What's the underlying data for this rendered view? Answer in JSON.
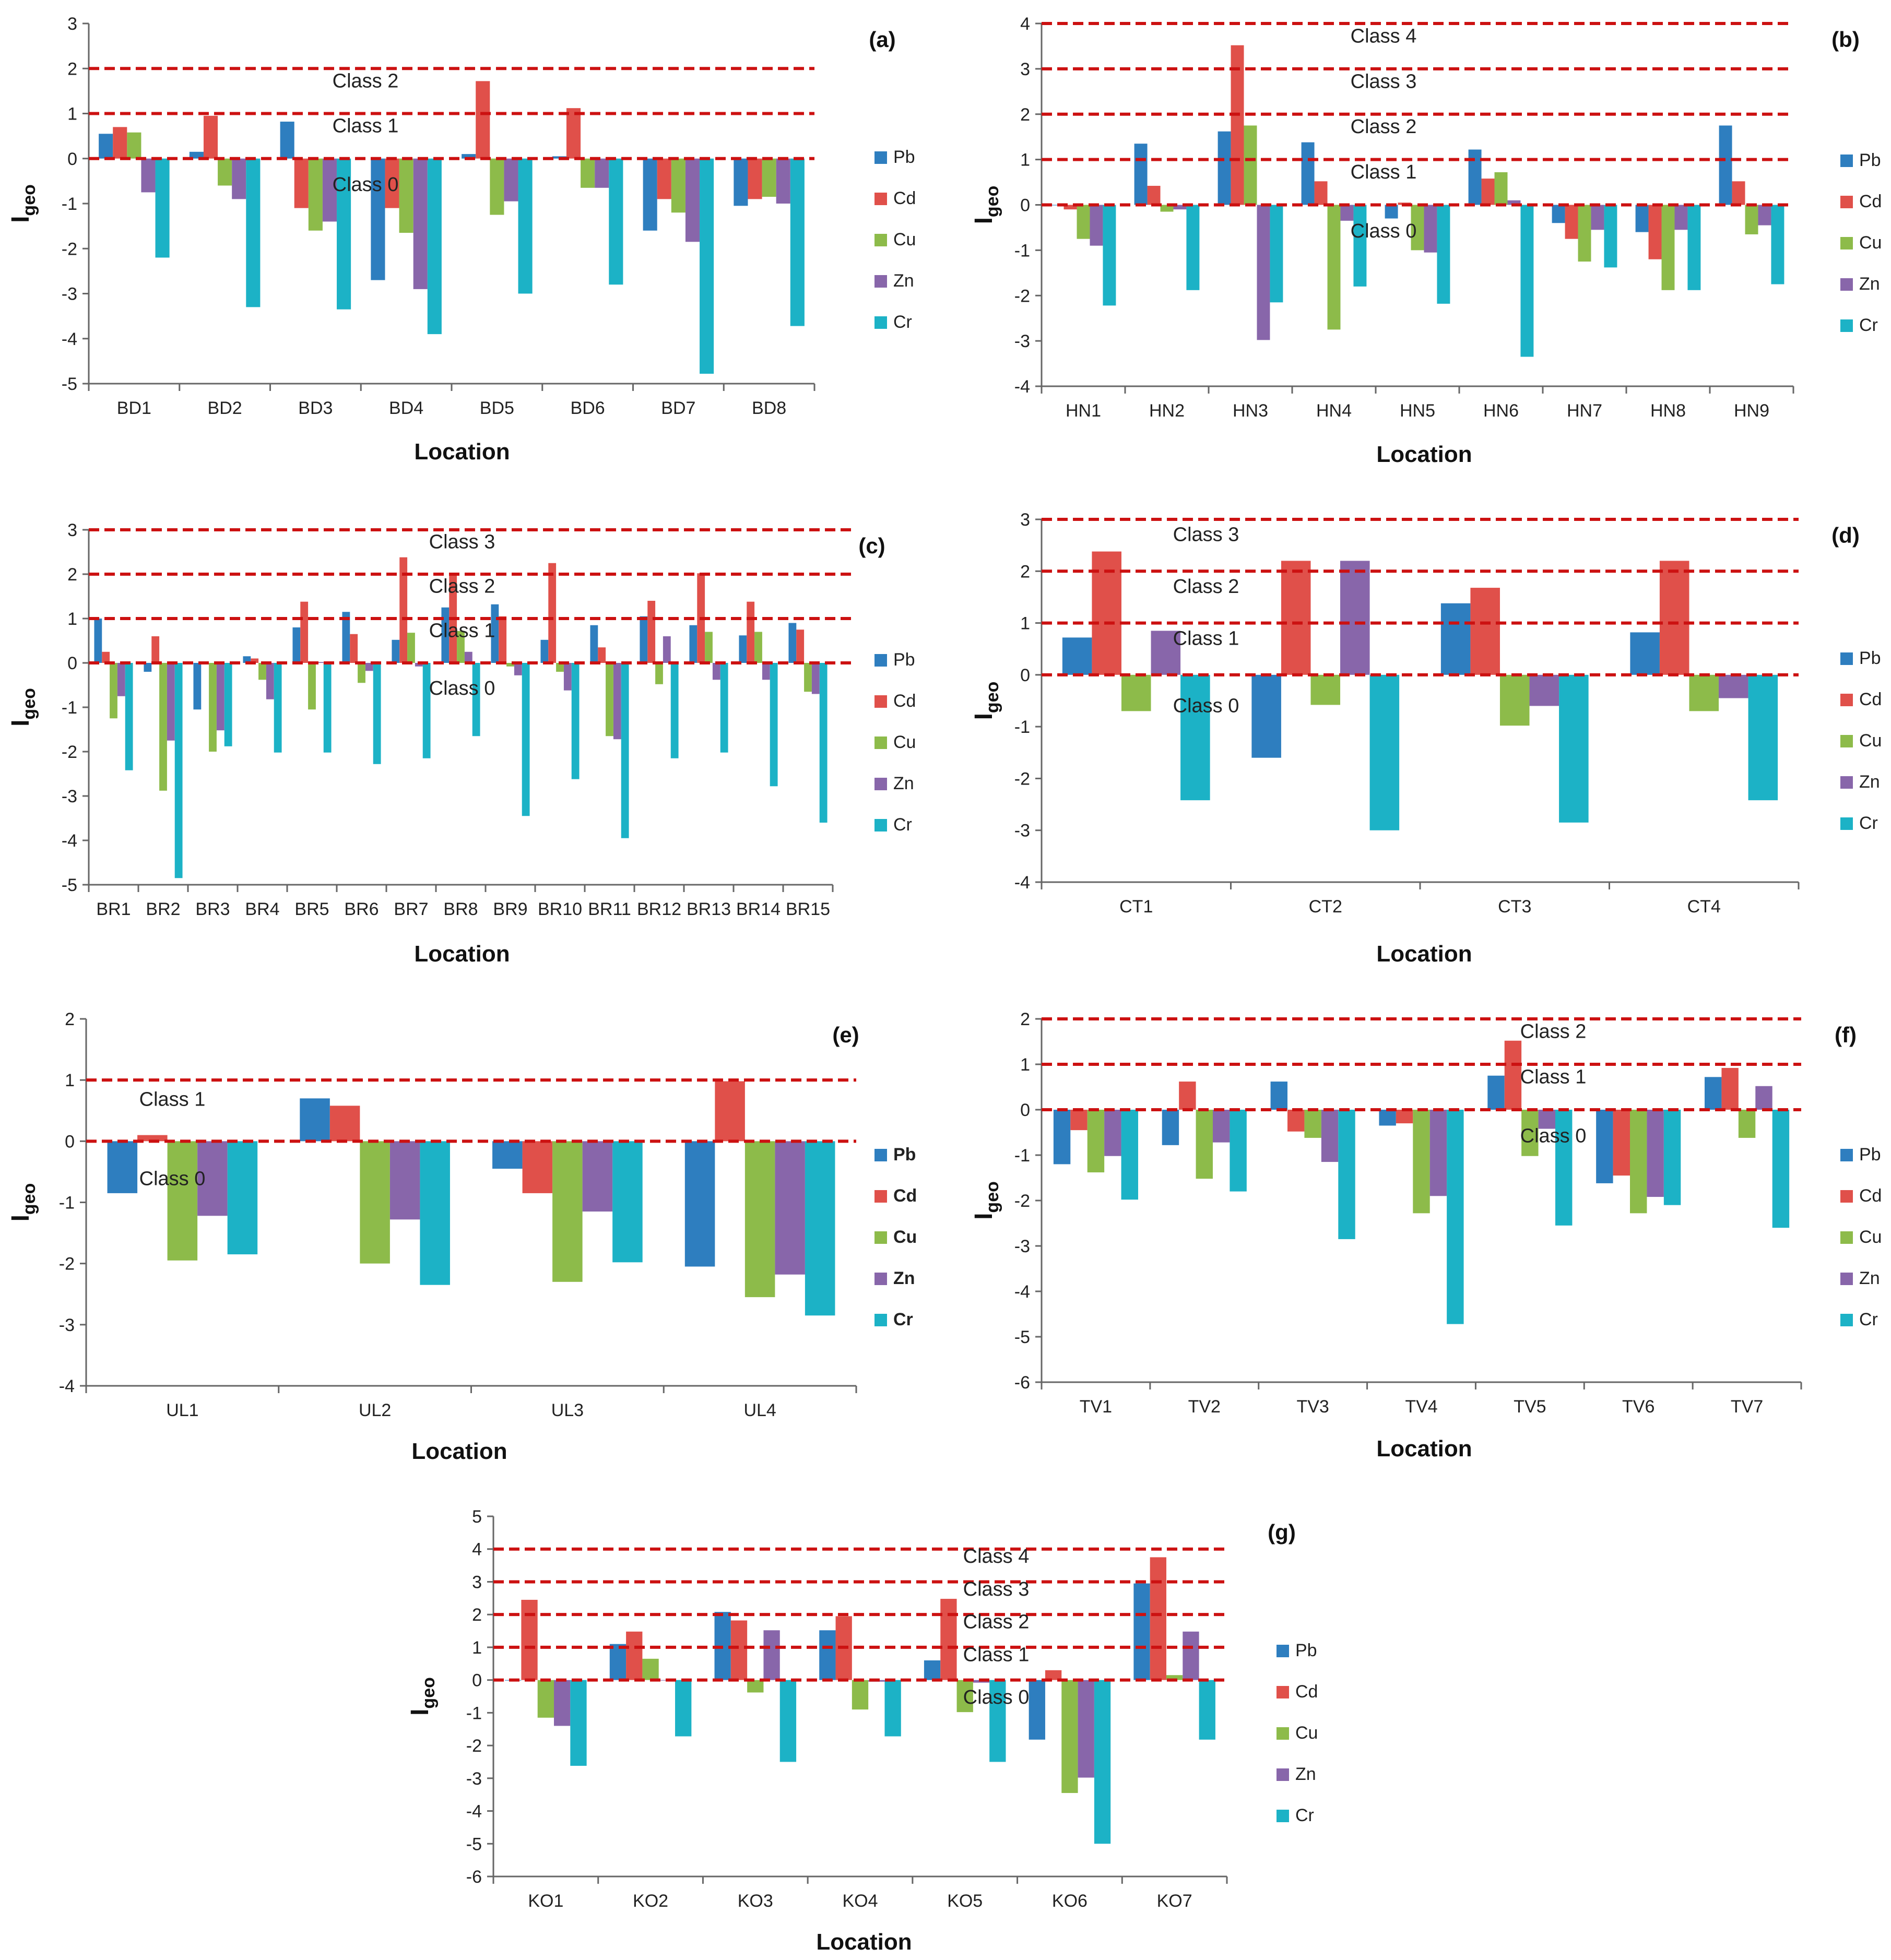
{
  "figure": {
    "ylabel": "I",
    "ylabel_sub": "geo"
  },
  "colors": {
    "Pb": "#2E7EBF",
    "Cd": "#E0504A",
    "Cu": "#8DBB4A",
    "Zn": "#8866AA",
    "Cr": "#1CB2C6",
    "threshold": "#CC1111"
  },
  "chart_data": [
    {
      "type": "bar",
      "label": "(a)",
      "xlabel": "Location",
      "ylim": [
        -5,
        3
      ],
      "yticks": [
        3,
        2,
        1,
        0,
        -1,
        -2,
        -3,
        -4,
        -5
      ],
      "categories": [
        "BD1",
        "BD2",
        "BD3",
        "BD4",
        "BD5",
        "BD6",
        "BD7",
        "BD8"
      ],
      "series": [
        {
          "name": "Pb",
          "values": [
            0.55,
            0.15,
            0.82,
            -2.7,
            0.1,
            0.05,
            -1.6,
            -1.05
          ]
        },
        {
          "name": "Cd",
          "values": [
            0.7,
            0.95,
            -1.1,
            -1.1,
            1.72,
            1.12,
            -0.9,
            -0.9
          ]
        },
        {
          "name": "Cu",
          "values": [
            0.58,
            -0.6,
            -1.6,
            -1.65,
            -1.25,
            -0.65,
            -1.2,
            -0.85
          ]
        },
        {
          "name": "Zn",
          "values": [
            -0.75,
            -0.9,
            -1.4,
            -2.9,
            -0.95,
            -0.65,
            -1.85,
            -1.0
          ]
        },
        {
          "name": "Cr",
          "values": [
            -2.2,
            -3.3,
            -3.35,
            -3.9,
            -3.0,
            -2.8,
            -4.78,
            -3.72
          ]
        }
      ],
      "thresholds": [
        0,
        1,
        2
      ],
      "class_labels": [
        "Class 0",
        "Class 1",
        "Class 2"
      ],
      "legend": [
        "Pb",
        "Cd",
        "Cu",
        "Zn",
        "Cr"
      ]
    },
    {
      "type": "bar",
      "label": "(b)",
      "xlabel": "Location",
      "ylim": [
        -4,
        4
      ],
      "yticks": [
        4,
        3,
        2,
        1,
        0,
        -1,
        -2,
        -3,
        -4
      ],
      "categories": [
        "HN1",
        "HN2",
        "HN3",
        "HN4",
        "HN5",
        "HN6",
        "HN7",
        "HN8",
        "HN9"
      ],
      "series": [
        {
          "name": "Pb",
          "values": [
            0.0,
            1.35,
            1.62,
            1.38,
            -0.3,
            1.22,
            -0.4,
            -0.6,
            1.75
          ]
        },
        {
          "name": "Cd",
          "values": [
            -0.1,
            0.42,
            3.52,
            0.52,
            0.05,
            0.58,
            -0.75,
            -1.2,
            0.52
          ]
        },
        {
          "name": "Cu",
          "values": [
            -0.75,
            -0.15,
            1.75,
            -2.75,
            -1.0,
            0.72,
            -1.25,
            -1.88,
            -0.65
          ]
        },
        {
          "name": "Zn",
          "values": [
            -0.9,
            -0.1,
            -2.98,
            -0.35,
            -1.05,
            0.1,
            -0.55,
            -0.55,
            -0.45
          ]
        },
        {
          "name": "Cr",
          "values": [
            -2.22,
            -1.88,
            -2.15,
            -1.8,
            -2.18,
            -3.35,
            -1.38,
            -1.88,
            -1.75
          ]
        }
      ],
      "thresholds": [
        0,
        1,
        2,
        3,
        4
      ],
      "class_labels": [
        "Class 0",
        "Class 1",
        "Class 2",
        "Class 3",
        "Class 4"
      ],
      "legend": [
        "Pb",
        "Cd",
        "Cu",
        "Zn",
        "Cr"
      ]
    },
    {
      "type": "bar",
      "label": "(c)",
      "xlabel": "Location",
      "ylim": [
        -5,
        3
      ],
      "yticks": [
        3,
        2,
        1,
        0,
        -1,
        -2,
        -3,
        -4,
        -5
      ],
      "categories": [
        "BR1",
        "BR2",
        "BR3",
        "BR4",
        "BR5",
        "BR6",
        "BR7",
        "BR8",
        "BR9",
        "BR10",
        "BR11",
        "BR12",
        "BR13",
        "BR14",
        "BR15"
      ],
      "series": [
        {
          "name": "Pb",
          "values": [
            1.0,
            -0.2,
            -1.05,
            0.15,
            0.8,
            1.15,
            0.52,
            1.25,
            1.32,
            0.52,
            0.85,
            1.05,
            0.85,
            0.62,
            0.9
          ]
        },
        {
          "name": "Cd",
          "values": [
            0.25,
            0.6,
            0.0,
            0.1,
            1.38,
            0.65,
            2.38,
            2.0,
            1.05,
            2.25,
            0.35,
            1.4,
            2.02,
            1.38,
            0.75
          ]
        },
        {
          "name": "Cu",
          "values": [
            -1.25,
            -2.88,
            -2.0,
            -0.38,
            -1.05,
            -0.45,
            0.68,
            0.72,
            -0.08,
            -0.2,
            -1.65,
            -0.48,
            0.7,
            0.7,
            -0.65
          ]
        },
        {
          "name": "Zn",
          "values": [
            -0.75,
            -1.75,
            -1.52,
            -0.82,
            0.02,
            -0.18,
            -0.08,
            0.25,
            -0.28,
            -0.62,
            -1.72,
            0.6,
            -0.38,
            -0.38,
            -0.7
          ]
        },
        {
          "name": "Cr",
          "values": [
            -2.42,
            -4.85,
            -1.88,
            -2.02,
            -2.02,
            -2.28,
            -2.15,
            -1.65,
            -3.45,
            -2.62,
            -3.95,
            -2.15,
            -2.02,
            -2.78,
            -3.6
          ]
        }
      ],
      "thresholds": [
        0,
        1,
        2,
        3
      ],
      "class_labels": [
        "Class 0",
        "Class 1",
        "Class 2",
        "Class 3"
      ],
      "legend": [
        "Pb",
        "Cd",
        "Cu",
        "Zn",
        "Cr"
      ]
    },
    {
      "type": "bar",
      "label": "(d)",
      "xlabel": "Location",
      "ylim": [
        -4,
        3
      ],
      "yticks": [
        3,
        2,
        1,
        0,
        -1,
        -2,
        -3,
        -4
      ],
      "categories": [
        "CT1",
        "CT2",
        "CT3",
        "CT4"
      ],
      "series": [
        {
          "name": "Pb",
          "values": [
            0.72,
            -1.6,
            1.38,
            0.82
          ]
        },
        {
          "name": "Cd",
          "values": [
            2.38,
            2.2,
            1.68,
            2.2
          ]
        },
        {
          "name": "Cu",
          "values": [
            -0.7,
            -0.58,
            -0.98,
            -0.7
          ]
        },
        {
          "name": "Zn",
          "values": [
            0.85,
            2.2,
            -0.6,
            -0.45
          ]
        },
        {
          "name": "Cr",
          "values": [
            -2.42,
            -3.0,
            -2.85,
            -2.42
          ]
        }
      ],
      "thresholds": [
        0,
        1,
        2,
        3
      ],
      "class_labels": [
        "Class 0",
        "Class 1",
        "Class 2",
        "Class 3"
      ],
      "legend": [
        "Pb",
        "Cd",
        "Cu",
        "Zn",
        "Cr"
      ]
    },
    {
      "type": "bar",
      "label": "(e)",
      "xlabel": "Location",
      "ylim": [
        -4,
        2
      ],
      "yticks": [
        2,
        1,
        0,
        -1,
        -2,
        -3,
        -4
      ],
      "categories": [
        "UL1",
        "UL2",
        "UL3",
        "UL4"
      ],
      "series": [
        {
          "name": "Pb",
          "values": [
            -0.85,
            0.7,
            -0.45,
            -2.05
          ]
        },
        {
          "name": "Cd",
          "values": [
            0.1,
            0.58,
            -0.85,
            0.98
          ]
        },
        {
          "name": "Cu",
          "values": [
            -1.95,
            -2.0,
            -2.3,
            -2.55
          ]
        },
        {
          "name": "Zn",
          "values": [
            -1.22,
            -1.28,
            -1.15,
            -2.18
          ]
        },
        {
          "name": "Cr",
          "values": [
            -1.85,
            -2.35,
            -1.98,
            -2.85
          ]
        }
      ],
      "thresholds": [
        0,
        1
      ],
      "class_labels": [
        "Class 0",
        "Class 1"
      ],
      "legend": [
        "Pb",
        "Cd",
        "Cu",
        "Zn",
        "Cr"
      ]
    },
    {
      "type": "bar",
      "label": "(f)",
      "xlabel": "Location",
      "ylim": [
        -6,
        2
      ],
      "yticks": [
        2,
        1,
        0,
        -1,
        -2,
        -3,
        -4,
        -5,
        -6
      ],
      "categories": [
        "TV1",
        "TV2",
        "TV3",
        "TV4",
        "TV5",
        "TV6",
        "TV7"
      ],
      "series": [
        {
          "name": "Pb",
          "values": [
            -1.2,
            -0.78,
            0.62,
            -0.35,
            0.75,
            -1.62,
            0.72
          ]
        },
        {
          "name": "Cd",
          "values": [
            -0.45,
            0.62,
            -0.48,
            -0.3,
            1.52,
            -1.45,
            0.92
          ]
        },
        {
          "name": "Cu",
          "values": [
            -1.38,
            -1.52,
            -0.62,
            -2.28,
            -1.02,
            -2.28,
            -0.62
          ]
        },
        {
          "name": "Zn",
          "values": [
            -1.02,
            -0.72,
            -1.15,
            -1.9,
            -0.42,
            -1.92,
            0.52
          ]
        },
        {
          "name": "Cr",
          "values": [
            -1.98,
            -1.8,
            -2.85,
            -4.72,
            -2.55,
            -2.1,
            -2.6
          ]
        }
      ],
      "thresholds": [
        0,
        1,
        2
      ],
      "class_labels": [
        "Class 0",
        "Class 1",
        "Class 2"
      ],
      "legend": [
        "Pb",
        "Cd",
        "Cu",
        "Zn",
        "Cr"
      ]
    },
    {
      "type": "bar",
      "label": "(g)",
      "xlabel": "Location",
      "ylim": [
        -6,
        5
      ],
      "yticks": [
        5,
        4,
        3,
        2,
        1,
        0,
        -1,
        -2,
        -3,
        -4,
        -5,
        -6
      ],
      "categories": [
        "KO1",
        "KO2",
        "KO3",
        "KO4",
        "KO5",
        "KO6",
        "KO7"
      ],
      "series": [
        {
          "name": "Pb",
          "values": [
            0.0,
            1.1,
            2.08,
            1.52,
            0.6,
            -1.82,
            2.95
          ]
        },
        {
          "name": "Cd",
          "values": [
            2.45,
            1.48,
            1.82,
            1.95,
            2.48,
            0.3,
            3.75
          ]
        },
        {
          "name": "Cu",
          "values": [
            -1.15,
            0.65,
            -0.38,
            -0.9,
            -0.98,
            -3.45,
            0.15
          ]
        },
        {
          "name": "Zn",
          "values": [
            -1.4,
            0.0,
            1.52,
            -0.05,
            -0.08,
            -2.98,
            1.48
          ]
        },
        {
          "name": "Cr",
          "values": [
            -2.62,
            -1.72,
            -2.5,
            -1.72,
            -2.5,
            -5.0,
            -1.82
          ]
        }
      ],
      "thresholds": [
        0,
        1,
        2,
        3,
        4
      ],
      "class_labels": [
        "Class 0",
        "Class 1",
        "Class 2",
        "Class 3",
        "Class 4"
      ],
      "legend": [
        "Pb",
        "Cd",
        "Cu",
        "Zn",
        "Cr"
      ]
    }
  ]
}
